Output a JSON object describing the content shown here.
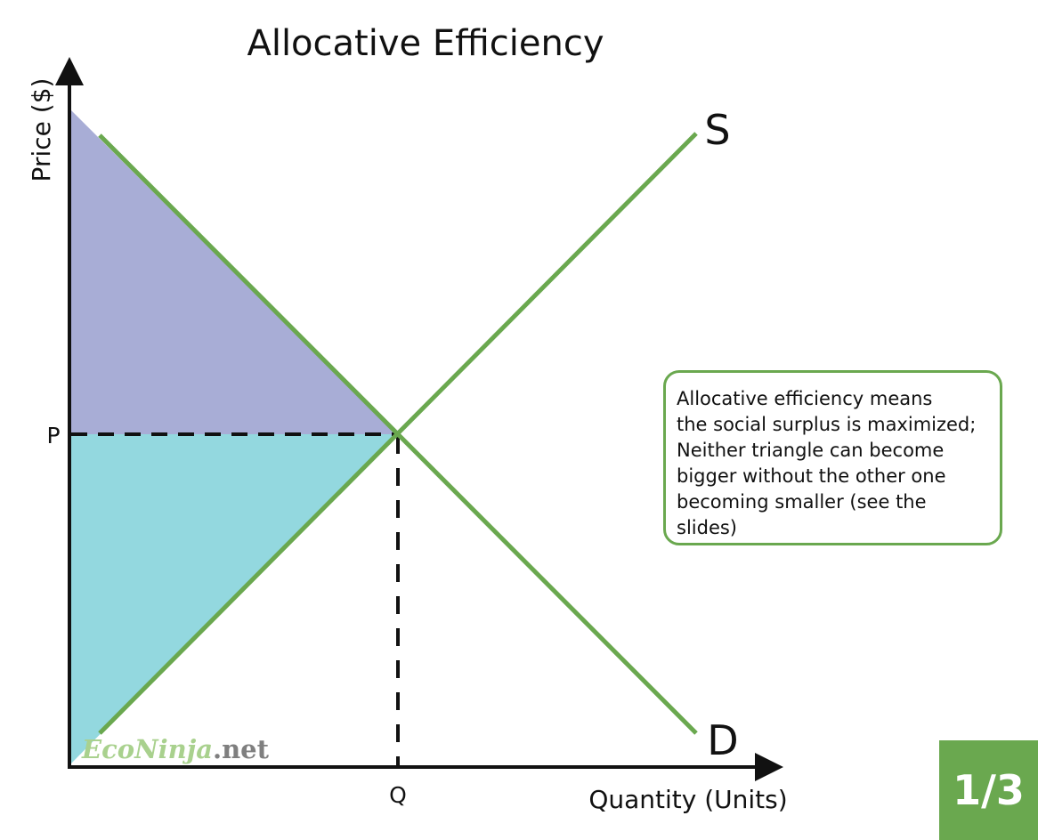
{
  "title": "Allocative Efficiency",
  "axes": {
    "y_label": "Price ($)",
    "x_label": "Quantity (Units)",
    "price_marker": "P",
    "quantity_marker": "Q"
  },
  "curves": {
    "supply_label": "S",
    "demand_label": "D",
    "line_color": "#6aa84f"
  },
  "areas": {
    "consumer_surplus_color": "#a8add6",
    "producer_surplus_color": "#93d8df"
  },
  "watermark": {
    "part1": "EcoNinja",
    "part2": ".net",
    "part1_color": "#a9d18e",
    "part2_color": "#7f7f7f"
  },
  "note": {
    "lines": [
      "Allocative efficiency means",
      "the social surplus is maximized;",
      "Neither triangle can become",
      "bigger without the other one",
      "becoming smaller (see the",
      "slides)"
    ]
  },
  "badge": {
    "text": "1/3"
  }
}
